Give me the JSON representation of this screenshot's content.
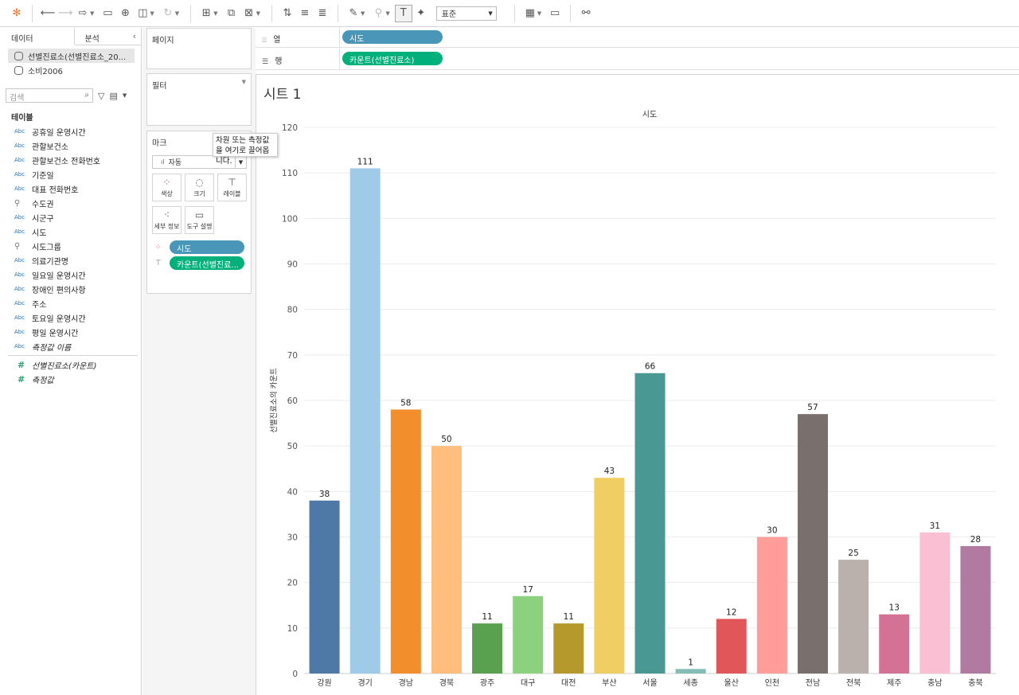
{
  "toolbar": {
    "fit_select": "표준"
  },
  "data_pane": {
    "tabs": [
      "데이터",
      "분석"
    ],
    "datasources": [
      "선별진료소(선별진료소_20...",
      "소비2006"
    ],
    "search_placeholder": "검색",
    "tables_label": "테이블",
    "fields": [
      {
        "type": "Abc",
        "name": "공휴일 운영시간"
      },
      {
        "type": "Abc",
        "name": "관할보건소"
      },
      {
        "type": "Abc",
        "name": "관할보건소 전화번호"
      },
      {
        "type": "Abc",
        "name": "기준일"
      },
      {
        "type": "Abc",
        "name": "대표 전화번호"
      },
      {
        "type": "geo",
        "name": "수도권"
      },
      {
        "type": "Abc",
        "name": "시군구"
      },
      {
        "type": "Abc",
        "name": "시도"
      },
      {
        "type": "geo",
        "name": "시도그룹"
      },
      {
        "type": "Abc",
        "name": "의료기관명"
      },
      {
        "type": "Abc",
        "name": "일요일 운영시간"
      },
      {
        "type": "Abc",
        "name": "장애인 편의사항"
      },
      {
        "type": "Abc",
        "name": "주소"
      },
      {
        "type": "Abc",
        "name": "토요일 운영시간"
      },
      {
        "type": "Abc",
        "name": "평일 운영시간"
      },
      {
        "type": "Abc",
        "name": "측정값 이름",
        "italic": true
      }
    ],
    "measures": [
      {
        "type": "#",
        "name": "선별진료소(카운트)"
      },
      {
        "type": "#",
        "name": "측정값"
      }
    ]
  },
  "cards": {
    "pages": "페이지",
    "filters": "필터",
    "marks": "마크",
    "mark_type": "자동",
    "mark_buttons": [
      "색상",
      "크기",
      "레이블",
      "세부 정보",
      "도구 설명"
    ],
    "mark_pills": [
      "시도",
      "카운트(선별진료..."
    ],
    "tooltip": "차원 또는 측정값을 여기로 끌어옵니다."
  },
  "shelves": {
    "columns_label": "열",
    "rows_label": "행",
    "columns_pill": "시도",
    "rows_pill": "카운트(선별진료소)"
  },
  "sheet_title": "시트 1",
  "chart_data": {
    "type": "bar",
    "title": "시트 1",
    "header": "시도",
    "xlabel": "",
    "ylabel": "선별진료소의 카운트",
    "ylim": [
      0,
      120
    ],
    "yticks": [
      0,
      10,
      20,
      30,
      40,
      50,
      60,
      70,
      80,
      90,
      100,
      110,
      120
    ],
    "grid": true,
    "categories": [
      "강원",
      "경기",
      "경남",
      "경북",
      "광주",
      "대구",
      "대전",
      "부산",
      "서울",
      "세종",
      "울산",
      "인천",
      "전남",
      "전북",
      "제주",
      "충남",
      "충북"
    ],
    "values": [
      38,
      111,
      58,
      50,
      11,
      17,
      11,
      43,
      66,
      1,
      12,
      30,
      57,
      25,
      13,
      31,
      28
    ],
    "colors": [
      "#4e79a7",
      "#a0cbe8",
      "#f28e2b",
      "#ffbe7d",
      "#59a14f",
      "#8cd17d",
      "#b6992d",
      "#f1ce63",
      "#499894",
      "#86bcb6",
      "#e15759",
      "#ff9d9a",
      "#79706e",
      "#bab0ac",
      "#d37295",
      "#fabfd2",
      "#b07aa1"
    ]
  }
}
